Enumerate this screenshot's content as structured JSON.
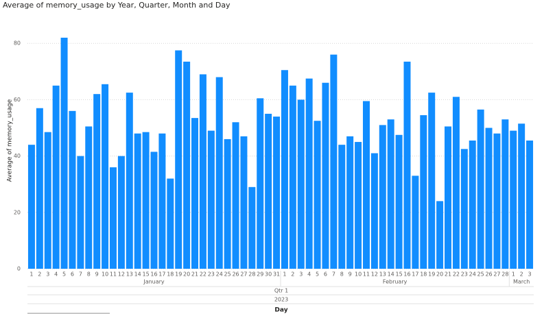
{
  "chart_data": {
    "type": "bar",
    "title": "Average of memory_usage by Year, Quarter, Month and Day",
    "y_label": "Average of memory_usage",
    "x_label": "Day",
    "quarter": "Qtr 1",
    "year": "2023",
    "color": "#118DFF",
    "ylim": [
      0,
      85
    ],
    "yticks": [
      0,
      20,
      40,
      60,
      80
    ],
    "grid": true,
    "groups": [
      {
        "name": "January",
        "categories": [
          "1",
          "2",
          "3",
          "4",
          "5",
          "6",
          "7",
          "8",
          "9",
          "10",
          "11",
          "12",
          "13",
          "14",
          "15",
          "16",
          "17",
          "18",
          "19",
          "20",
          "21",
          "22",
          "23",
          "24",
          "25",
          "26",
          "27",
          "28",
          "29",
          "30",
          "31"
        ],
        "values": [
          44,
          57,
          48.5,
          65,
          82,
          56,
          40,
          50.5,
          62,
          65.5,
          36,
          40,
          62.5,
          48,
          48.5,
          41.5,
          48,
          32,
          77.5,
          73.5,
          53.5,
          69,
          49,
          68,
          46,
          52,
          47,
          29,
          60.5,
          55,
          54
        ]
      },
      {
        "name": "February",
        "categories": [
          "1",
          "2",
          "3",
          "4",
          "5",
          "6",
          "7",
          "8",
          "9",
          "10",
          "11",
          "12",
          "13",
          "14",
          "15",
          "16",
          "17",
          "18",
          "19",
          "20",
          "21",
          "22",
          "23",
          "24",
          "25",
          "26",
          "27",
          "28"
        ],
        "values": [
          70.5,
          65,
          60,
          67.5,
          52.5,
          66,
          76,
          44,
          47,
          45,
          59.5,
          41,
          51,
          53,
          47.5,
          73.5,
          33,
          54.5,
          62.5,
          24,
          50.5,
          61,
          42.5,
          45.5,
          56.5,
          50,
          48,
          53
        ]
      },
      {
        "name": "March",
        "categories": [
          "1",
          "2",
          "3"
        ],
        "values": [
          49,
          51.5,
          45.5
        ]
      }
    ]
  }
}
